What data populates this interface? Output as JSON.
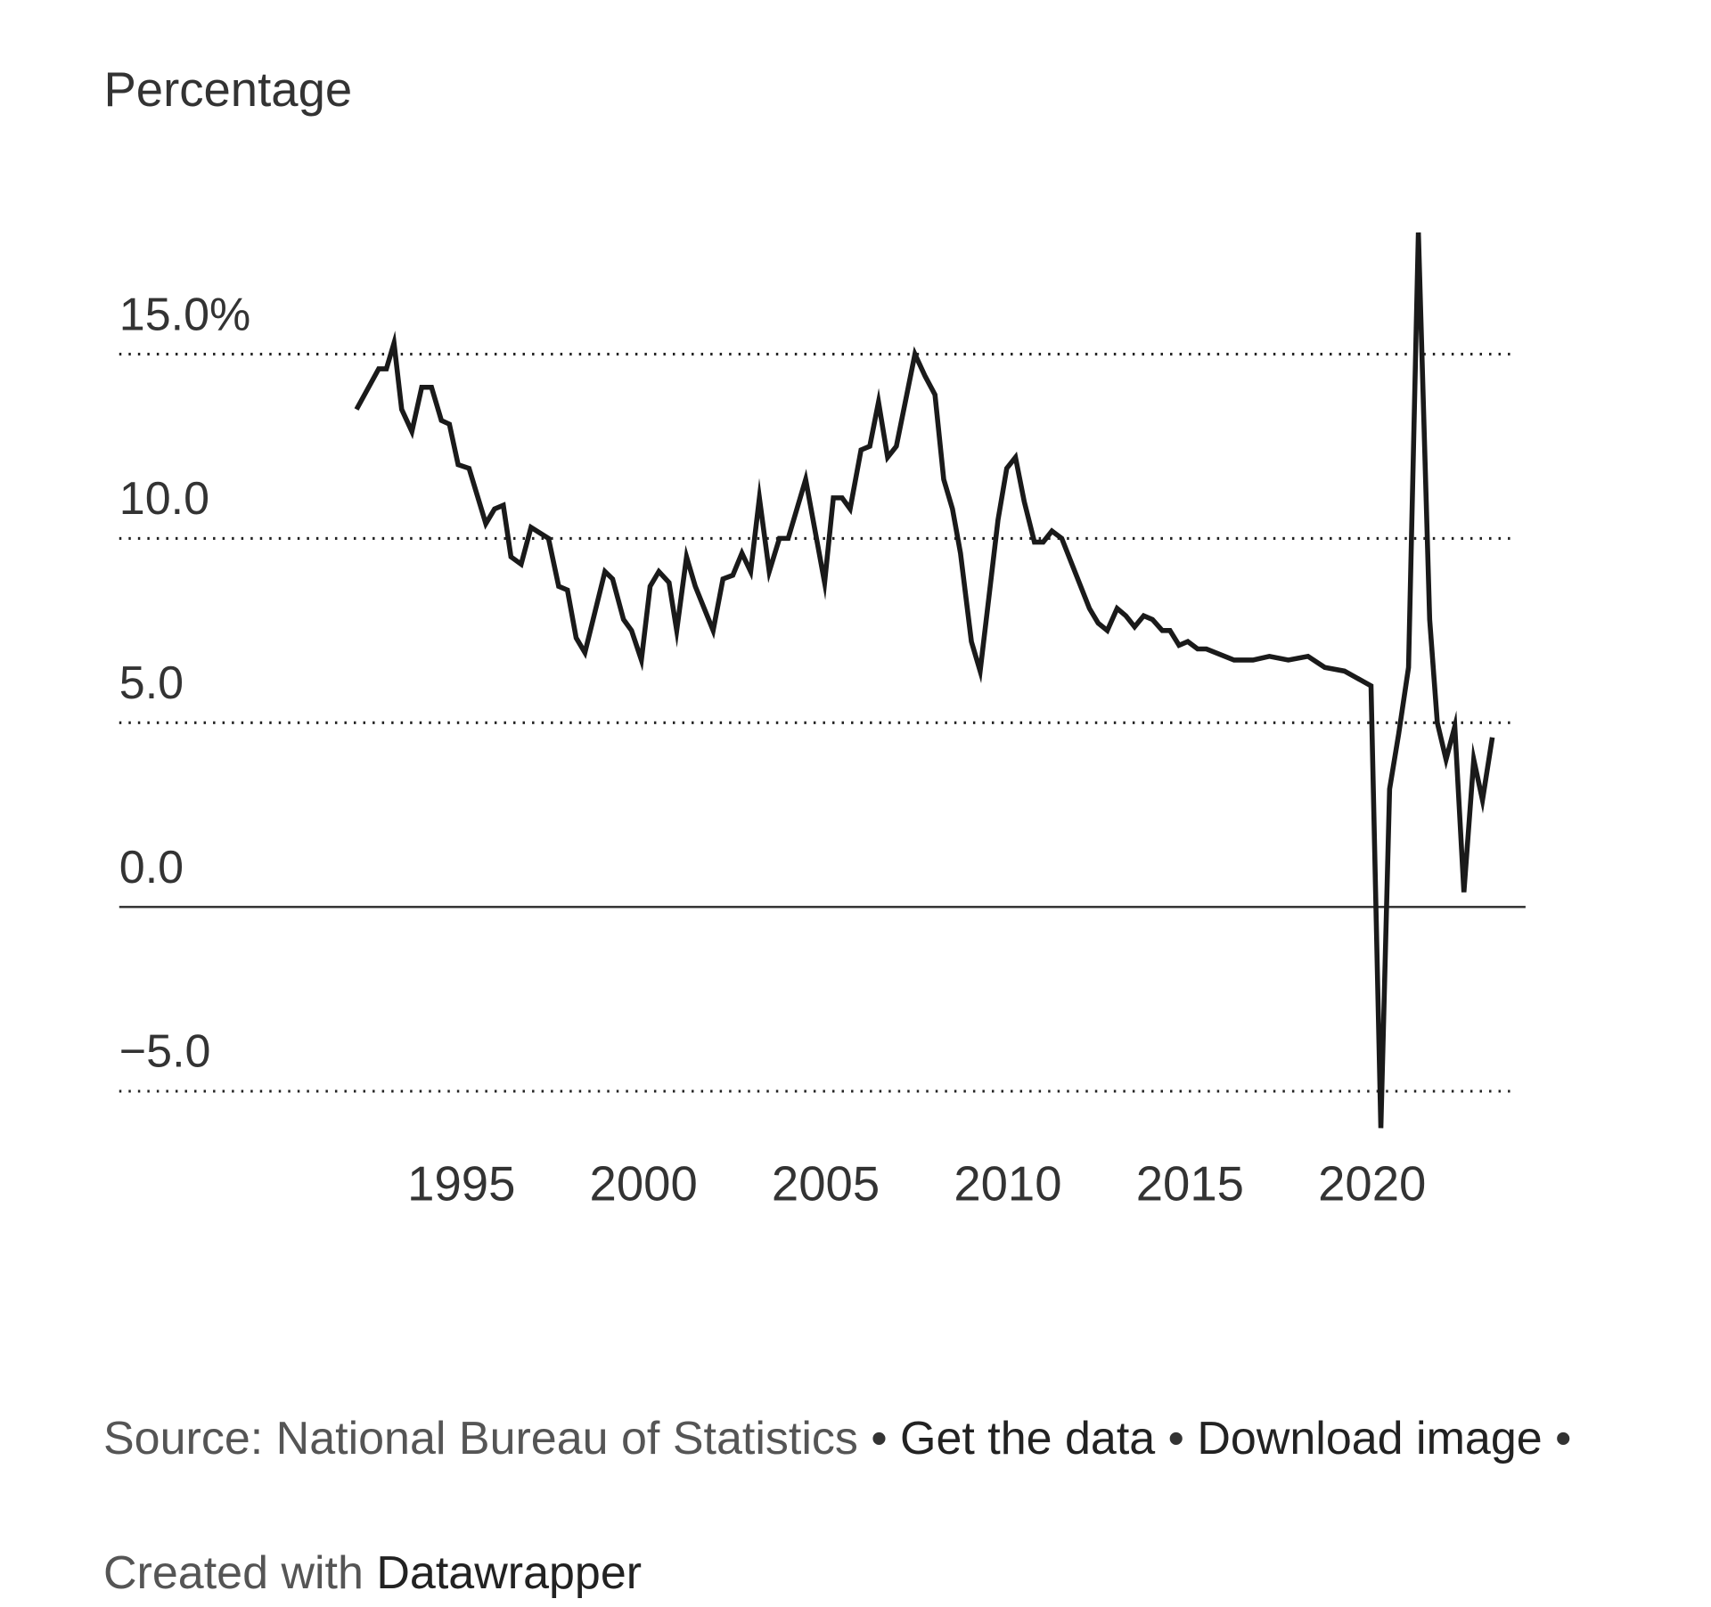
{
  "chart_data": {
    "type": "line",
    "y_axis_title": "Percentage",
    "x": [
      1992.12,
      1992.73,
      1992.94,
      1993.15,
      1993.36,
      1993.64,
      1993.91,
      1994.18,
      1994.45,
      1994.67,
      1994.91,
      1995.21,
      1995.67,
      1995.91,
      1996.15,
      1996.36,
      1996.64,
      1996.91,
      1997.39,
      1997.67,
      1997.91,
      1998.15,
      1998.39,
      1998.94,
      1999.15,
      1999.45,
      1999.67,
      1999.94,
      2000.18,
      2000.42,
      2000.7,
      2000.91,
      2001.18,
      2001.42,
      2001.91,
      2002.18,
      2002.45,
      2002.7,
      2002.94,
      2003.18,
      2003.45,
      2003.73,
      2003.97,
      2004.45,
      2004.97,
      2005.21,
      2005.45,
      2005.67,
      2005.97,
      2006.21,
      2006.45,
      2006.7,
      2006.94,
      2007.45,
      2007.73,
      2008.0,
      2008.24,
      2008.48,
      2008.7,
      2009.0,
      2009.24,
      2009.48,
      2009.73,
      2009.97,
      2010.21,
      2010.45,
      2010.73,
      2010.97,
      2011.21,
      2011.48,
      2012.24,
      2012.48,
      2012.73,
      2013.0,
      2013.24,
      2013.48,
      2013.73,
      2013.97,
      2014.24,
      2014.45,
      2014.7,
      2014.94,
      2015.21,
      2015.45,
      2016.21,
      2016.73,
      2017.18,
      2017.7,
      2018.24,
      2018.7,
      2019.24,
      2019.97,
      2020.24,
      2020.48,
      2020.73,
      2021.0,
      2021.27,
      2021.58,
      2021.79,
      2022.03,
      2022.27,
      2022.52,
      2022.79,
      2023.03,
      2023.3
    ],
    "values": [
      13.5,
      14.6,
      14.6,
      15.3,
      13.5,
      12.9,
      14.1,
      14.1,
      13.2,
      13.1,
      12.0,
      11.9,
      10.4,
      10.8,
      10.9,
      9.5,
      9.3,
      10.3,
      10.0,
      8.7,
      8.6,
      7.3,
      6.9,
      9.1,
      8.9,
      7.8,
      7.5,
      6.7,
      8.7,
      9.1,
      8.8,
      7.5,
      9.5,
      8.7,
      7.5,
      8.9,
      9.0,
      9.6,
      9.1,
      11.1,
      9.1,
      10.0,
      10.0,
      11.6,
      8.8,
      11.1,
      11.1,
      10.8,
      12.4,
      12.5,
      13.7,
      12.2,
      12.5,
      15.0,
      14.4,
      13.9,
      11.6,
      10.8,
      9.6,
      7.2,
      6.4,
      8.4,
      10.5,
      11.9,
      12.2,
      11.0,
      9.9,
      9.9,
      10.2,
      10.0,
      8.1,
      7.7,
      7.5,
      8.1,
      7.9,
      7.6,
      7.9,
      7.8,
      7.5,
      7.5,
      7.1,
      7.2,
      7.0,
      7.0,
      6.7,
      6.7,
      6.8,
      6.7,
      6.8,
      6.5,
      6.4,
      6.0,
      -6.0,
      3.2,
      4.7,
      6.5,
      18.3,
      7.8,
      5.0,
      4.0,
      4.9,
      0.4,
      4.0,
      2.9,
      4.6
    ],
    "color": "#1a1a1a",
    "xlim": [
      1992,
      2024
    ],
    "xticks": [
      1995,
      2000,
      2005,
      2010,
      2015,
      2020
    ],
    "ylim": [
      -6.5,
      18.5
    ],
    "yticks": [
      {
        "value": 15,
        "label": "15.0%"
      },
      {
        "value": 10,
        "label": "10.0"
      },
      {
        "value": 5,
        "label": "5.0"
      },
      {
        "value": 0,
        "label": "0.0"
      },
      {
        "value": -5,
        "label": "−5.0"
      }
    ],
    "grid": true
  },
  "footer": {
    "source": "Source: National Bureau of Statistics",
    "separator": "•",
    "get_data": "Get the data",
    "download": "Download image",
    "created_with": "Created with",
    "credit": "Datawrapper"
  }
}
